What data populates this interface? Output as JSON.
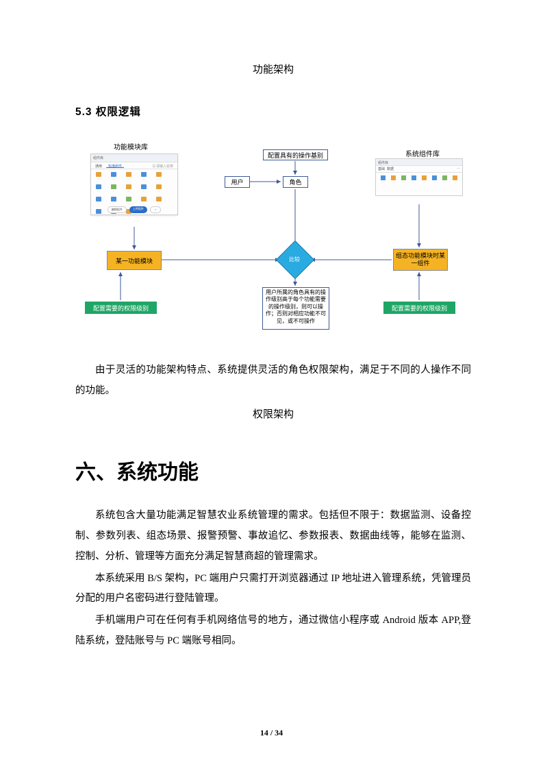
{
  "caption_top": "功能架构",
  "heading_53": "5.3 权限逻辑",
  "diagram": {
    "labels": {
      "lib": "功能模块库",
      "syslib": "系统组件库"
    },
    "nodes": {
      "user": {
        "text": "用户",
        "bg": "#ffffff",
        "border": "#3b5998"
      },
      "role": {
        "text": "角色",
        "bg": "#ffffff",
        "border": "#3b5998"
      },
      "config_op": {
        "text": "配置具有的操作基别",
        "bg": "#ffffff",
        "border": "#3b5998"
      },
      "module": {
        "text": "某一功能模块",
        "bg": "#f5b324"
      },
      "component": {
        "text": "组态功能模块时某一组件",
        "bg": "#f5b324"
      },
      "perm_left": {
        "text": "配置需要的权限级别",
        "bg": "#1fa565",
        "color": "#ffffff"
      },
      "perm_right": {
        "text": "配置需要的权限级别",
        "bg": "#1fa565",
        "color": "#ffffff"
      },
      "diamond": {
        "text": "比较",
        "bg": "#29abe2"
      },
      "desc": {
        "text": "用户所属的角色具有的操作级别高于每个功能需要的操作级别，则可以操作；否则对相应功能不可见，或不可操作",
        "bg": "#ffffff",
        "border": "#3b5998"
      }
    },
    "mock_icon_colors": [
      "#e8a13a",
      "#4a90d9",
      "#e8a13a",
      "#4a90d9",
      "#e8a13a",
      "#4a90d9",
      "#7bb661",
      "#e8a13a",
      "#4a90d9",
      "#e8a13a",
      "#4a90d9",
      "#4a90d9",
      "#7bb661",
      "#e8a13a",
      "#e8a13a",
      "#4a90d9",
      "#4a90d9",
      "#e8a13a"
    ],
    "mock2_icon_colors": [
      "#4a90d9",
      "#e8a13a",
      "#7bb661",
      "#4a90d9",
      "#e8a13a",
      "#4a90d9",
      "#7bb661",
      "#e8a13a"
    ],
    "arrow_color": "#3b5998"
  },
  "para1": "由于灵活的功能架构特点、系统提供灵活的角色权限架构，满足于不同的人操作不同的功能。",
  "caption_mid": "权限架构",
  "h1": "六、系统功能",
  "para2": "系统包含大量功能满足智慧农业系统管理的需求。包括但不限于：数据监测、设备控制、参数列表、组态场景、报警预警、事故追忆、参数报表、数据曲线等，能够在监测、控制、分析、管理等方面充分满足智慧商超的管理需求。",
  "para3": "本系统采用 B/S 架构，PC 端用户只需打开浏览器通过 IP 地址进入管理系统，凭管理员分配的用户名密码进行登陆管理。",
  "para4": "手机端用户可在任何有手机网络信号的地方，通过微信小程序或 Android 版本 APP,登陆系统，登陆账号与 PC 端账号相同。",
  "page_num": "14 / 34"
}
